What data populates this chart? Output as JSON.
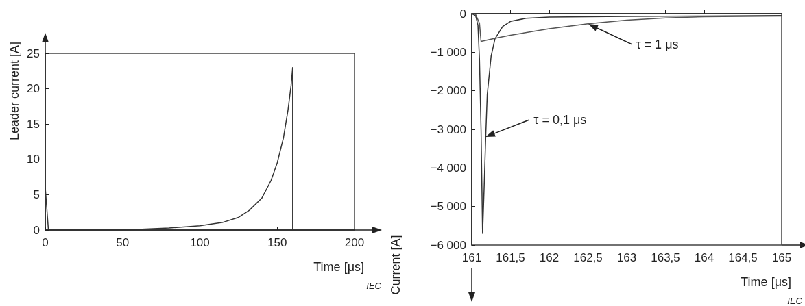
{
  "chart_data": [
    {
      "type": "line",
      "xlabel": "Time [μs]",
      "ylabel": "Leader current [A]",
      "xlim": [
        0,
        200
      ],
      "ylim": [
        0,
        25
      ],
      "xticks": [
        0,
        50,
        100,
        150,
        200
      ],
      "yticks": [
        0,
        5,
        10,
        15,
        20,
        25
      ],
      "grid": false,
      "marker": "none",
      "line_style": "solid",
      "annotations": [
        "IEC"
      ],
      "series": [
        {
          "color": "#333333",
          "x": [
            0,
            2,
            20,
            50,
            80,
            100,
            115,
            125,
            132,
            140,
            146,
            150,
            154,
            157,
            159,
            160,
            160
          ],
          "values": [
            6,
            0.1,
            0,
            0,
            0.3,
            0.6,
            1.1,
            1.8,
            2.8,
            4.5,
            7,
            9.5,
            13,
            17,
            20.5,
            23,
            0
          ]
        }
      ]
    },
    {
      "type": "line",
      "xlabel": "Time [μs]",
      "ylabel": "Current [A]",
      "xlim": [
        161,
        165
      ],
      "ylim": [
        -6000,
        0
      ],
      "grid": false,
      "marker": "none",
      "line_style": "solid",
      "xticks": [
        161,
        {
          "value": 161.5,
          "label": "161,5"
        },
        162,
        {
          "value": 162.5,
          "label": "162,5"
        },
        163,
        {
          "value": 163.5,
          "label": "163,5"
        },
        164,
        {
          "value": 164.5,
          "label": "164,5"
        },
        165
      ],
      "yticks": [
        {
          "value": -6000,
          "label": "−6 000"
        },
        {
          "value": -5000,
          "label": "−5 000"
        },
        {
          "value": -4000,
          "label": "−4 000"
        },
        {
          "value": -3000,
          "label": "−3 000"
        },
        {
          "value": -2000,
          "label": "−2 000"
        },
        {
          "value": -1000,
          "label": "−1 000"
        },
        0
      ],
      "annotations": [
        "τ = 0,1 μs",
        "τ = 1 μs",
        "IEC"
      ],
      "series": [
        {
          "color": "#333333",
          "x": [
            161,
            161.05,
            161.08,
            161.1,
            161.12,
            161.14,
            161.16,
            161.18,
            161.2,
            161.25,
            161.3,
            161.4,
            161.5,
            161.7,
            162,
            163,
            164,
            165
          ],
          "values": [
            0,
            -50,
            -300,
            -1200,
            -3000,
            -5700,
            -4500,
            -3200,
            -2100,
            -1100,
            -650,
            -330,
            -200,
            -120,
            -90,
            -70,
            -60,
            -50
          ]
        },
        {
          "color": "#555555",
          "x": [
            161,
            161.05,
            161.1,
            161.12,
            161.3,
            161.5,
            162,
            162.5,
            163,
            163.5,
            164,
            164.5,
            165
          ],
          "values": [
            0,
            -20,
            -250,
            -720,
            -640,
            -560,
            -390,
            -260,
            -170,
            -110,
            -80,
            -70,
            -60
          ]
        }
      ]
    }
  ]
}
